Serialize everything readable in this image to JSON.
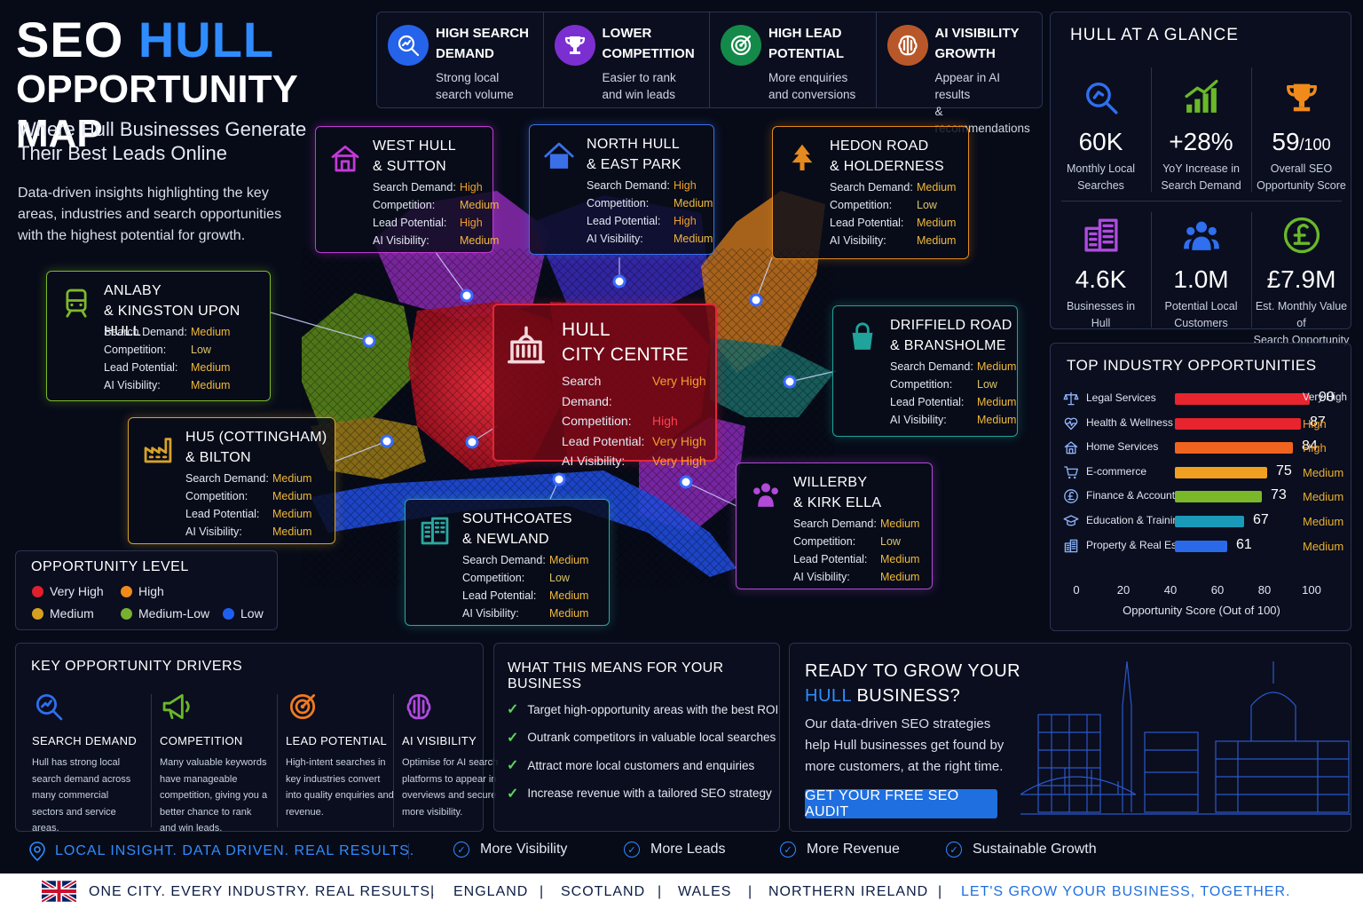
{
  "title": {
    "seo": "SEO",
    "hull": "HULL",
    "line2": "OPPORTUNITY MAP",
    "subtitle": "Where Hull Businesses Generate Their Best Leads Online",
    "intro": "Data-driven insights highlighting the key areas, industries and search opportunities with the highest potential for growth."
  },
  "top_strip": [
    {
      "icon": "search-chart-icon",
      "color": "#2563eb",
      "heading1": "HIGH SEARCH",
      "heading2": "DEMAND",
      "desc1": "Strong local",
      "desc2": "search volume"
    },
    {
      "icon": "trophy-icon",
      "color": "#7c2fd1",
      "heading1": "LOWER",
      "heading2": "COMPETITION",
      "desc1": "Easier to rank",
      "desc2": "and win leads"
    },
    {
      "icon": "target-icon",
      "color": "#148a4a",
      "heading1": "HIGH LEAD",
      "heading2": "POTENTIAL",
      "desc1": "More enquiries",
      "desc2": "and conversions"
    },
    {
      "icon": "ai-brain-icon",
      "color": "#b8582a",
      "heading1": "AI VISIBILITY",
      "heading2": "GROWTH",
      "desc1": "Appear in AI results",
      "desc2": "& recommendations"
    }
  ],
  "glance": {
    "title": "HULL AT A GLANCE",
    "stats": [
      {
        "icon": "search-icon",
        "value": "60K",
        "suffix": "",
        "label1": "Monthly Local",
        "label2": "Searches"
      },
      {
        "icon": "growth-chart-icon",
        "value": "+28%",
        "suffix": "",
        "label1": "YoY Increase in",
        "label2": "Search Demand"
      },
      {
        "icon": "trophy-icon",
        "value": "59",
        "suffix": "/100",
        "label1": "Overall SEO",
        "label2": "Opportunity Score"
      },
      {
        "icon": "buildings-icon",
        "value": "4.6K",
        "suffix": "",
        "label1": "Businesses in",
        "label2": "Hull"
      },
      {
        "icon": "people-icon",
        "value": "1.0M",
        "suffix": "",
        "label1": "Potential Local",
        "label2": "Customers"
      },
      {
        "icon": "pound-icon",
        "value": "£7.9M",
        "suffix": "",
        "label1": "Est. Monthly Value of",
        "label2": "Search Opportunity"
      }
    ]
  },
  "metric_labels": {
    "search": "Search Demand:",
    "competition": "Competition:",
    "lead": "Lead Potential:",
    "ai": "AI Visibility:"
  },
  "areas": [
    {
      "id": "west",
      "icon": "house-icon",
      "line1": "WEST HULL",
      "line2": "& SUTTON",
      "color": "#c23ad6",
      "search": "High",
      "competition": "Medium",
      "lead": "High",
      "ai": "Medium"
    },
    {
      "id": "north",
      "icon": "home-icon",
      "line1": "NORTH HULL",
      "line2": "& EAST PARK",
      "color": "#3b6fe8",
      "search": "High",
      "competition": "Medium",
      "lead": "High",
      "ai": "Medium"
    },
    {
      "id": "hedon",
      "icon": "tree-icon",
      "line1": "HEDON ROAD",
      "line2": "& HOLDERNESS",
      "color": "#e58a1f",
      "search": "Medium",
      "competition": "Low",
      "lead": "Medium",
      "ai": "Medium"
    },
    {
      "id": "anlaby",
      "icon": "train-icon",
      "line1": "ANLABY",
      "line2": "& KINGSTON UPON HULL",
      "color": "#7fb82a",
      "search": "Medium",
      "competition": "Low",
      "lead": "Medium",
      "ai": "Medium"
    },
    {
      "id": "city",
      "icon": "city-hall-icon",
      "line1": "HULL",
      "line2": "CITY CENTRE",
      "color": "#e0263a",
      "search": "Very High",
      "competition": "High",
      "lead": "Very High",
      "ai": "Very High"
    },
    {
      "id": "driffield",
      "icon": "shopping-bag-icon",
      "line1": "DRIFFIELD ROAD",
      "line2": "& BRANSHOLME",
      "color": "#1fa39a",
      "search": "Medium",
      "competition": "Low",
      "lead": "Medium",
      "ai": "Medium"
    },
    {
      "id": "cottingham",
      "icon": "factory-icon",
      "line1": "HU5 (COTTINGHAM)",
      "line2": "& BILTON",
      "color": "#d6a22a",
      "search": "Medium",
      "competition": "Medium",
      "lead": "Medium",
      "ai": "Medium"
    },
    {
      "id": "southcoates",
      "icon": "office-buildings-icon",
      "line1": "SOUTHCOATES",
      "line2": "& NEWLAND",
      "color": "#2aa8a0",
      "search": "Medium",
      "competition": "Low",
      "lead": "Medium",
      "ai": "Medium"
    },
    {
      "id": "willerby",
      "icon": "group-icon",
      "line1": "WILLERBY",
      "line2": "& KIRK ELLA",
      "color": "#b24ad8",
      "search": "Medium",
      "competition": "Low",
      "lead": "Medium",
      "ai": "Medium"
    }
  ],
  "level_colors": {
    "Very High": "#f0a02a",
    "High": "#f0a02a",
    "Medium": "#f0b83a",
    "Low": "#d8c56a"
  },
  "legend": {
    "title": "OPPORTUNITY LEVEL",
    "items": [
      {
        "label": "Very High",
        "color": "#e0202e"
      },
      {
        "label": "High",
        "color": "#f08a1a"
      },
      {
        "label": "Medium",
        "color": "#d8a020"
      },
      {
        "label": "Medium-Low",
        "color": "#78b030"
      },
      {
        "label": "Low",
        "color": "#1f5ff0"
      }
    ]
  },
  "industries": {
    "title": "TOP INDUSTRY OPPORTUNITIES",
    "axis_label": "Opportunity Score (Out of 100)",
    "ticks": [
      "0",
      "20",
      "40",
      "60",
      "80",
      "100"
    ],
    "items": [
      {
        "icon": "scales-icon",
        "name": "Legal Services",
        "score": 90,
        "level": "Very High",
        "color": "#e8242e",
        "level_color": "#e0e6f0"
      },
      {
        "icon": "heart-pulse-icon",
        "name": "Health & Wellness",
        "score": 87,
        "level": "High",
        "color": "#e8242e",
        "level_color": "#f0a02a"
      },
      {
        "icon": "house-icon",
        "name": "Home Services",
        "score": 84,
        "level": "High",
        "color": "#f06420",
        "level_color": "#f0a02a"
      },
      {
        "icon": "cart-icon",
        "name": "E-commerce",
        "score": 75,
        "level": "Medium",
        "color": "#f0a020",
        "level_color": "#e8b030"
      },
      {
        "icon": "pound-icon",
        "name": "Finance & Accounting",
        "score": 73,
        "level": "Medium",
        "color": "#7ab82a",
        "level_color": "#e8b030"
      },
      {
        "icon": "graduation-cap-icon",
        "name": "Education & Training",
        "score": 67,
        "level": "Medium",
        "color": "#1a9ab8",
        "level_color": "#e8b030"
      },
      {
        "icon": "buildings-icon",
        "name": "Property & Real Estate",
        "score": 61,
        "level": "Medium",
        "color": "#2a6ae8",
        "level_color": "#e8b030"
      }
    ]
  },
  "drivers": {
    "title": "KEY OPPORTUNITY DRIVERS",
    "items": [
      {
        "icon": "search-chart-icon",
        "color": "#2f6ff0",
        "title": "SEARCH DEMAND",
        "desc": "Hull has strong local search demand across many commercial sectors and service areas."
      },
      {
        "icon": "megaphone-icon",
        "color": "#6ab82a",
        "title": "COMPETITION",
        "desc": "Many valuable keywords have manageable competition, giving you a better chance to rank and win leads."
      },
      {
        "icon": "target-icon",
        "color": "#f07a20",
        "title": "LEAD POTENTIAL",
        "desc": "High-intent searches in key industries convert into quality enquiries and revenue."
      },
      {
        "icon": "ai-brain-icon",
        "color": "#b04ae0",
        "title": "AI VISIBILITY",
        "desc": "Optimise for AI search platforms to appear in overviews and secure more visibility."
      }
    ]
  },
  "means": {
    "title": "WHAT THIS MEANS FOR YOUR BUSINESS",
    "items": [
      "Target high-opportunity areas with the best ROI",
      "Outrank competitors in valuable local searches",
      "Attract more local customers and enquiries",
      "Increase revenue with a tailored SEO strategy"
    ]
  },
  "cta": {
    "line1": "READY TO GROW YOUR",
    "hull": "HULL",
    "line2_rest": " BUSINESS?",
    "desc": "Our data-driven SEO strategies help Hull businesses get found by more customers, at the right time.",
    "button": "GET YOUR FREE SEO AUDIT"
  },
  "tagline": "LOCAL INSIGHT. DATA DRIVEN. REAL RESULTS.",
  "benefits": [
    "More Visibility",
    "More Leads",
    "More Revenue",
    "Sustainable Growth"
  ],
  "footer": {
    "flag": "uk-flag-icon",
    "items": [
      "ONE CITY. EVERY INDUSTRY. REAL RESULTS.",
      "ENGLAND",
      "SCOTLAND",
      "WALES",
      "NORTHERN IRELAND",
      "LET'S GROW YOUR BUSINESS, TOGETHER."
    ],
    "highlight_color": "#1f6fe0"
  }
}
